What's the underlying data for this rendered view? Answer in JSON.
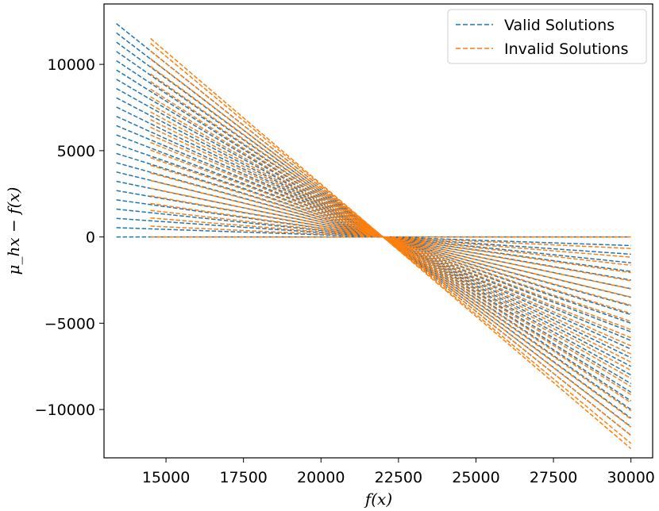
{
  "chart_data": {
    "type": "line",
    "title": "",
    "xlabel": "f(x)",
    "ylabel": "μ_hx − f(x)",
    "xlim": [
      13000,
      30700
    ],
    "ylim": [
      -12800,
      13500
    ],
    "x_ticks": [
      15000,
      17500,
      20000,
      22500,
      25000,
      27500,
      30000
    ],
    "y_ticks": [
      -10000,
      -5000,
      0,
      5000,
      10000
    ],
    "x_tick_labels": [
      "15000",
      "17500",
      "20000",
      "22500",
      "25000",
      "27500",
      "30000"
    ],
    "y_tick_labels": [
      "−10000",
      "−5000",
      "0",
      "5000",
      "10000"
    ],
    "grid": false,
    "legend_position": "top-right",
    "line_style": "dashed",
    "pivot_x": 22000,
    "series": [
      {
        "name": "Valid Solutions",
        "color": "#1f77b4",
        "x_range": [
          13400,
          30000
        ],
        "slopes": [
          0,
          -0.0625,
          -0.125,
          -0.1875,
          -0.25,
          -0.3125,
          -0.375,
          -0.4375,
          -0.5,
          -0.5625,
          -0.625,
          -0.6875,
          -0.75,
          -0.8125,
          -0.875,
          -0.9375,
          -1.0,
          -1.0625,
          -1.125,
          -1.1875,
          -1.25,
          -1.3125,
          -1.375,
          -1.4375
        ]
      },
      {
        "name": "Invalid Solutions",
        "color": "#ff7f0e",
        "x_range": [
          14500,
          30000
        ],
        "slopes": [
          0,
          -0.0833,
          -0.1465,
          -0.2051,
          -0.2588,
          -0.3177,
          -0.3766,
          -0.4355,
          -0.4944,
          -0.5533,
          -0.6122,
          -0.6711,
          -0.73,
          -0.7889,
          -0.8478,
          -0.9067,
          -0.9656,
          -1.0245,
          -1.0834,
          -1.1423,
          -1.2012,
          -1.26,
          -1.3189,
          -1.3778,
          -1.4367,
          -1.4956,
          -1.5333
        ]
      }
    ]
  }
}
